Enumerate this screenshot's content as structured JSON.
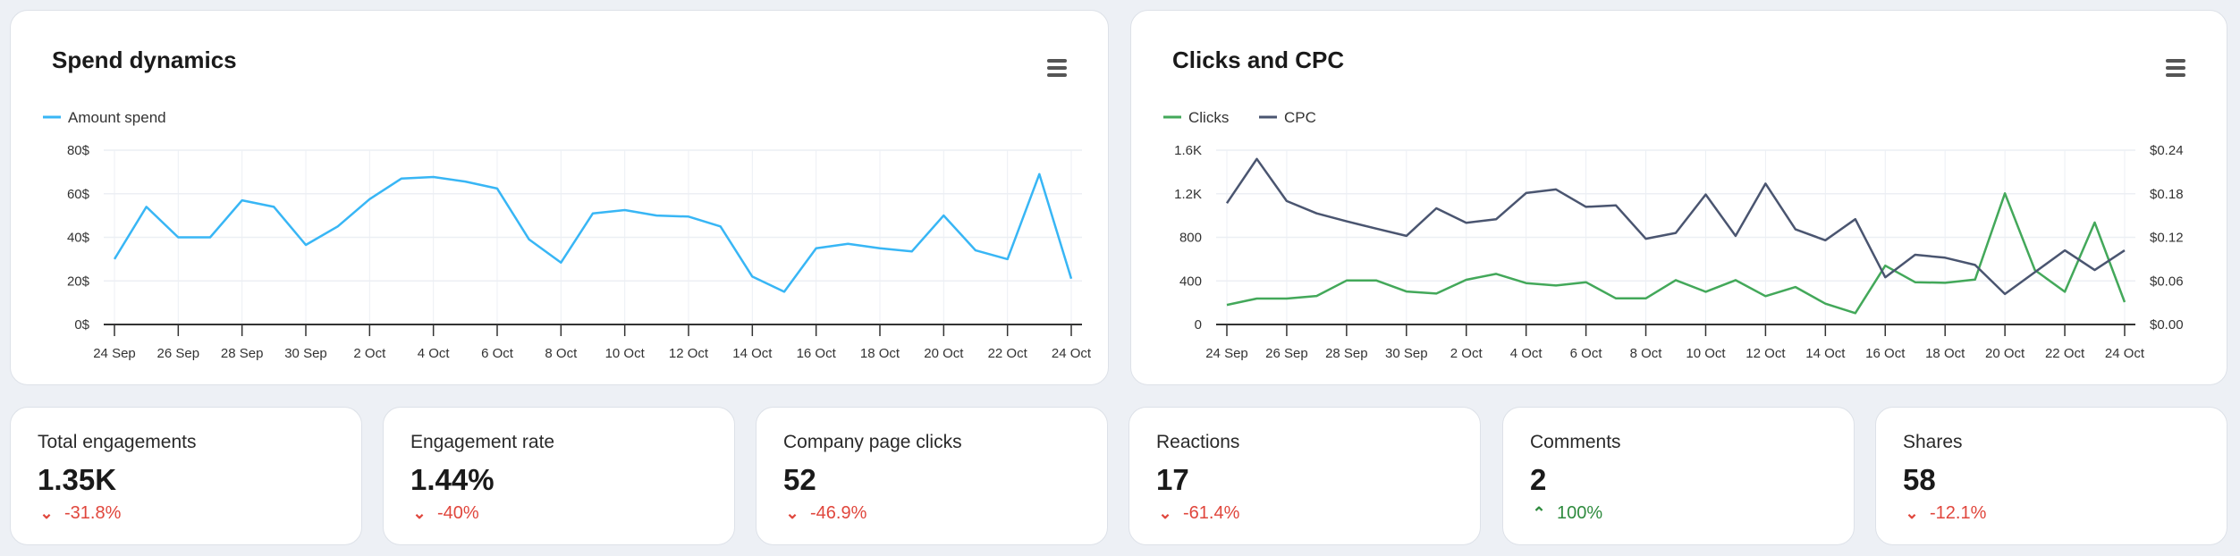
{
  "colors": {
    "spend": "#38b6f5",
    "clicks": "#43a85a",
    "cpc": "#4a5570",
    "down": "#e0463c",
    "up": "#2e8b3e",
    "grid": "#eceff4"
  },
  "spend_card": {
    "title": "Spend dynamics",
    "menu_icon": "hamburger-menu-icon"
  },
  "cpc_card": {
    "title": "Clicks and CPC",
    "menu_icon": "hamburger-menu-icon"
  },
  "chart_data": [
    {
      "type": "line",
      "title": "Spend dynamics",
      "legend": "top-left",
      "grid": true,
      "x": [
        "24 Sep",
        "25 Sep",
        "26 Sep",
        "27 Sep",
        "28 Sep",
        "29 Sep",
        "30 Sep",
        "1 Oct",
        "2 Oct",
        "3 Oct",
        "4 Oct",
        "5 Oct",
        "6 Oct",
        "7 Oct",
        "8 Oct",
        "9 Oct",
        "10 Oct",
        "11 Oct",
        "12 Oct",
        "13 Oct",
        "14 Oct",
        "15 Oct",
        "16 Oct",
        "17 Oct",
        "18 Oct",
        "19 Oct",
        "20 Oct",
        "21 Oct",
        "22 Oct",
        "23 Oct",
        "24 Oct"
      ],
      "x_tick_labels": [
        "24 Sep",
        "26 Sep",
        "28 Sep",
        "30 Sep",
        "2 Oct",
        "4 Oct",
        "6 Oct",
        "8 Oct",
        "10 Oct",
        "12 Oct",
        "14 Oct",
        "16 Oct",
        "18 Oct",
        "20 Oct",
        "22 Oct",
        "24 Oct"
      ],
      "y_tick_labels": [
        "0$",
        "20$",
        "40$",
        "60$",
        "80$"
      ],
      "ylim": [
        0,
        80
      ],
      "series": [
        {
          "name": "Amount spend",
          "values": [
            30,
            54,
            40,
            40,
            57,
            54,
            36.5,
            45,
            57.5,
            67,
            67.7,
            65.6,
            62.4,
            39,
            28.4,
            51,
            52.5,
            50,
            49.5,
            45,
            22,
            15,
            35,
            37,
            35,
            33.5,
            50,
            34,
            30,
            69,
            21
          ]
        }
      ]
    },
    {
      "type": "line",
      "title": "Clicks and CPC",
      "legend": "top-left",
      "grid": true,
      "x": [
        "24 Sep",
        "25 Sep",
        "26 Sep",
        "27 Sep",
        "28 Sep",
        "29 Sep",
        "30 Sep",
        "1 Oct",
        "2 Oct",
        "3 Oct",
        "4 Oct",
        "5 Oct",
        "6 Oct",
        "7 Oct",
        "8 Oct",
        "9 Oct",
        "10 Oct",
        "11 Oct",
        "12 Oct",
        "13 Oct",
        "14 Oct",
        "15 Oct",
        "16 Oct",
        "17 Oct",
        "18 Oct",
        "19 Oct",
        "20 Oct",
        "21 Oct",
        "22 Oct",
        "23 Oct",
        "24 Oct"
      ],
      "x_tick_labels": [
        "24 Sep",
        "26 Sep",
        "28 Sep",
        "30 Sep",
        "2 Oct",
        "4 Oct",
        "6 Oct",
        "8 Oct",
        "10 Oct",
        "12 Oct",
        "14 Oct",
        "16 Oct",
        "18 Oct",
        "20 Oct",
        "22 Oct",
        "24 Oct"
      ],
      "y_tick_labels": [
        "0",
        "400",
        "800",
        "1.2K",
        "1.6K"
      ],
      "y2_tick_labels": [
        "$0.00",
        "$0.06",
        "$0.12",
        "$0.18",
        "$0.24"
      ],
      "ylim": [
        0,
        1600
      ],
      "y2lim": [
        0,
        0.24
      ],
      "series": [
        {
          "name": "Clicks",
          "axis": "left",
          "values": [
            180,
            238,
            238,
            262,
            404,
            404,
            303,
            284,
            410,
            464,
            380,
            358,
            388,
            240,
            240,
            407,
            300,
            407,
            260,
            344,
            191,
            104,
            540,
            388,
            382,
            412,
            1204,
            500,
            300,
            936,
            205
          ]
        },
        {
          "name": "CPC",
          "axis": "right",
          "values": [
            0.167,
            0.228,
            0.17,
            0.153,
            0.142,
            0.132,
            0.122,
            0.16,
            0.14,
            0.145,
            0.181,
            0.186,
            0.162,
            0.164,
            0.118,
            0.126,
            0.179,
            0.122,
            0.194,
            0.131,
            0.116,
            0.145,
            0.065,
            0.096,
            0.092,
            0.082,
            0.042,
            0.072,
            0.102,
            0.075,
            0.102
          ]
        }
      ]
    }
  ],
  "kpis": [
    {
      "label": "Total engagements",
      "value": "1.35K",
      "delta": "-31.8%",
      "direction": "down"
    },
    {
      "label": "Engagement rate",
      "value": "1.44%",
      "delta": "-40%",
      "direction": "down"
    },
    {
      "label": "Company page clicks",
      "value": "52",
      "delta": "-46.9%",
      "direction": "down"
    },
    {
      "label": "Reactions",
      "value": "17",
      "delta": "-61.4%",
      "direction": "down"
    },
    {
      "label": "Comments",
      "value": "2",
      "delta": "100%",
      "direction": "up"
    },
    {
      "label": "Shares",
      "value": "58",
      "delta": "-12.1%",
      "direction": "down"
    }
  ]
}
